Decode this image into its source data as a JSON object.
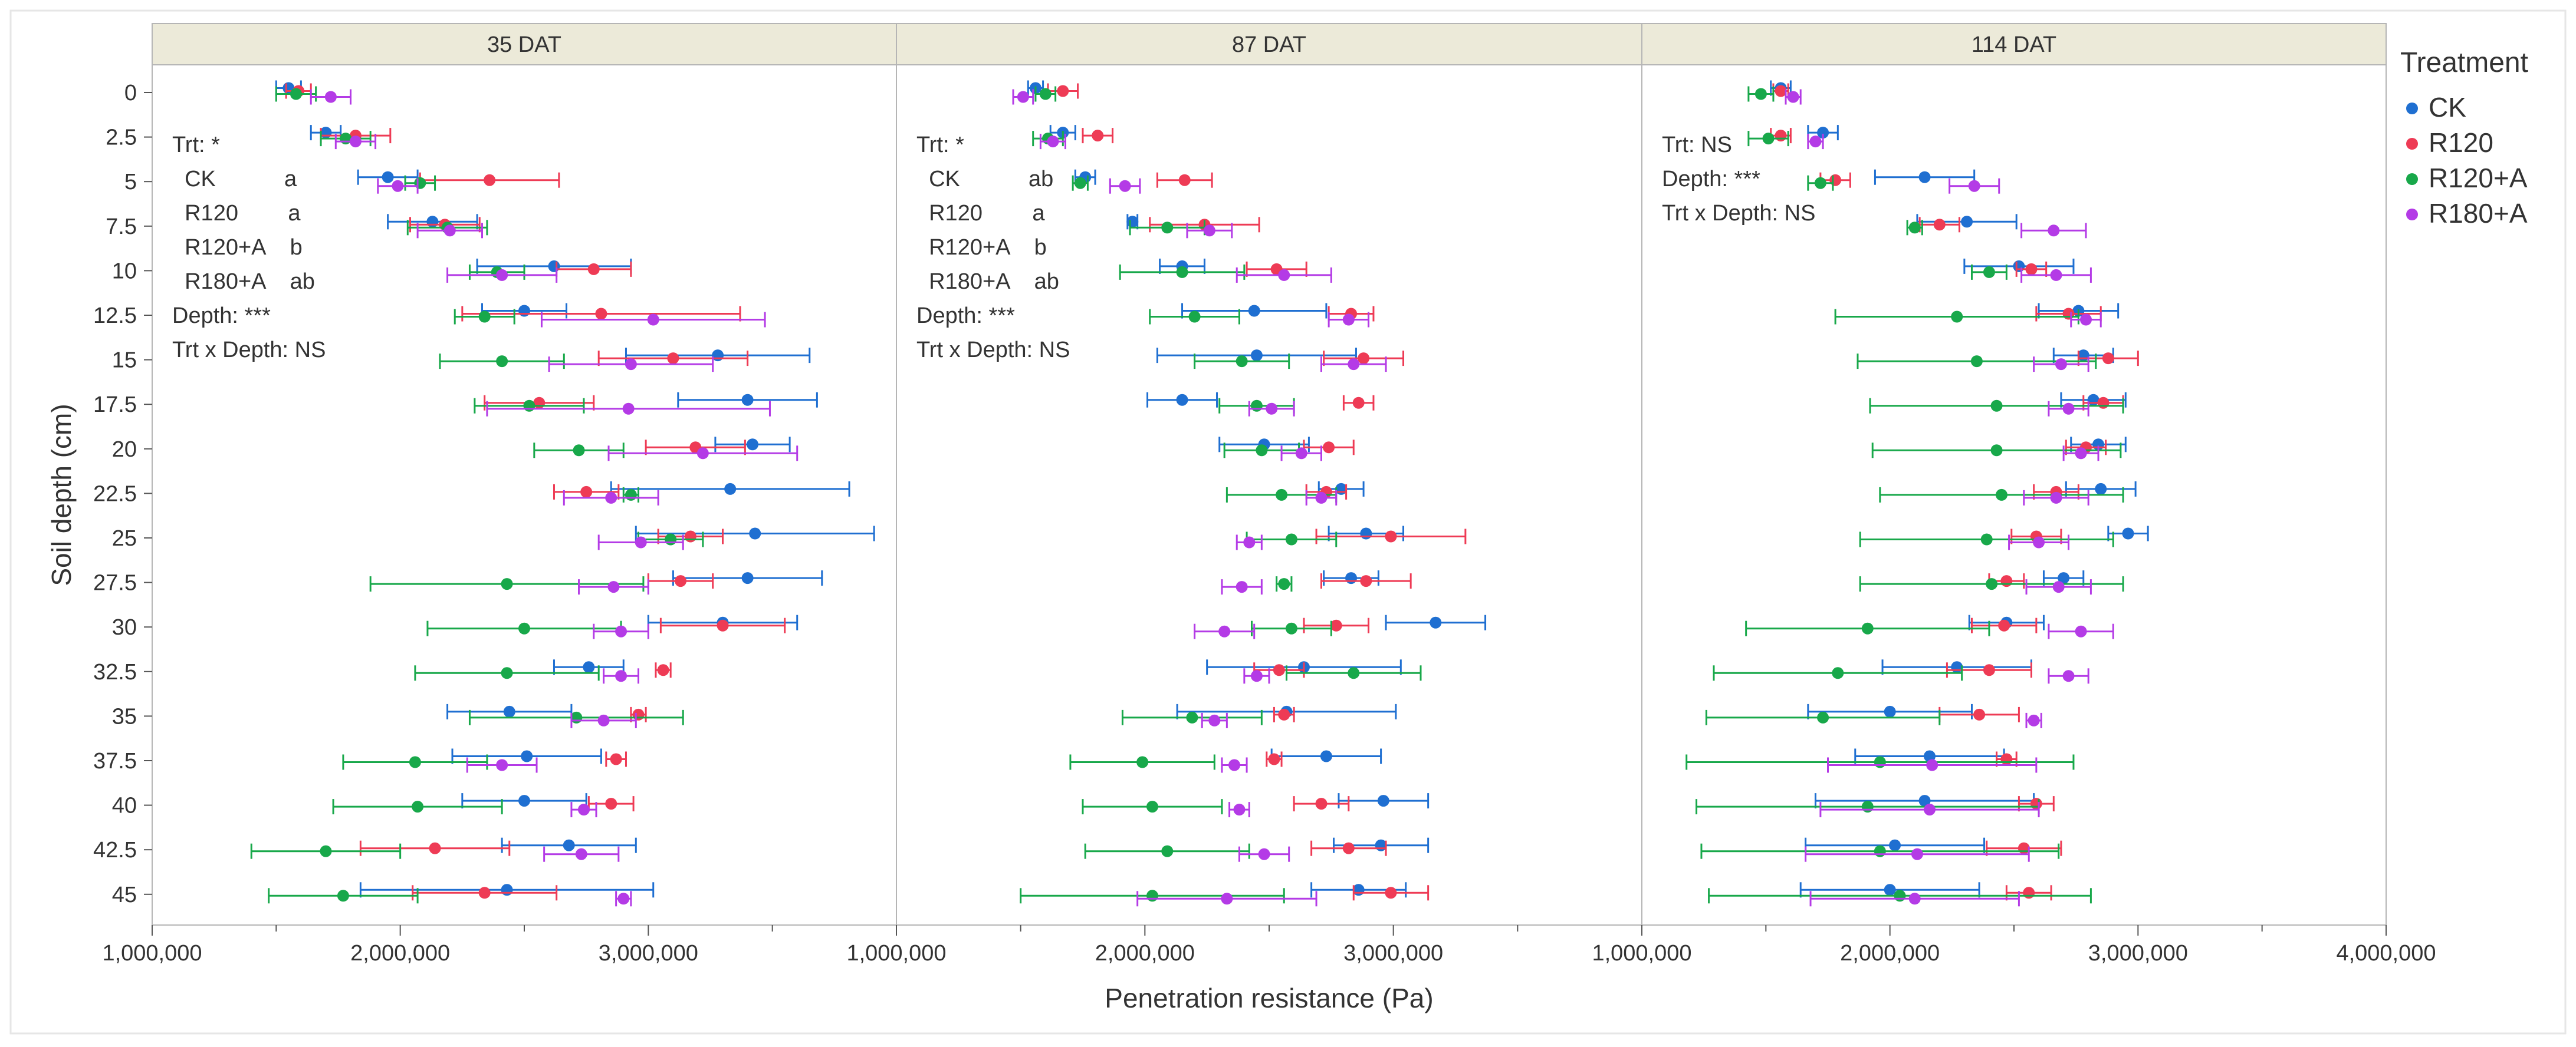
{
  "chart_data": {
    "type": "scatter",
    "x_axis_label": "Penetration resistance (Pa)",
    "y_axis_label": "Soil depth (cm)",
    "depths": [
      0,
      2.5,
      5,
      7.5,
      10,
      12.5,
      15,
      17.5,
      20,
      22.5,
      25,
      27.5,
      30,
      32.5,
      35,
      37.5,
      40,
      42.5,
      45
    ],
    "depth_labels": [
      "0",
      "2.5",
      "5",
      "7.5",
      "10",
      "12.5",
      "15",
      "17.5",
      "20",
      "22.5",
      "25",
      "27.5",
      "30",
      "32.5",
      "35",
      "37.5",
      "40",
      "42.5",
      "45"
    ],
    "x_range": [
      1000000,
      4000000
    ],
    "panel_x_max": [
      4000000,
      4000000,
      4000000
    ],
    "x_ticks": [
      1000000,
      2000000,
      3000000,
      4000000
    ],
    "x_tick_labels": [
      "1,000,000",
      "2,000,000",
      "3,000,000",
      "4,000,000"
    ],
    "legend": {
      "title": "Treatment",
      "entries": [
        {
          "label": "CK",
          "color": "#1f6fd1"
        },
        {
          "label": "R120",
          "color": "#ee3b55"
        },
        {
          "label": "R120+A",
          "color": "#18a84a"
        },
        {
          "label": "R180+A",
          "color": "#b43be6"
        }
      ]
    },
    "panels": [
      {
        "title": "35 DAT",
        "annotations": [
          "Trt: *",
          "  CK           a",
          "  R120        a",
          "  R120+A    b",
          "  R180+A    ab",
          "Depth: ***",
          "Trt x Depth: NS"
        ],
        "series": [
          {
            "name": "CK",
            "x": [
              1550000,
              1700000,
              1950000,
              2130000,
              2620000,
              2500000,
              3280000,
              3400000,
              3420000,
              3330000,
              3430000,
              3400000,
              3300000,
              2760000,
              2440000,
              2510000,
              2500000,
              2680000,
              2430000
            ],
            "xerr": [
              50000,
              60000,
              120000,
              180000,
              310000,
              170000,
              370000,
              280000,
              150000,
              480000,
              480000,
              300000,
              300000,
              140000,
              250000,
              300000,
              250000,
              270000,
              590000
            ]
          },
          {
            "name": "R120",
            "x": [
              1590000,
              1820000,
              2360000,
              2180000,
              2780000,
              2810000,
              3100000,
              2560000,
              3190000,
              2750000,
              3170000,
              3130000,
              3300000,
              3060000,
              2960000,
              2870000,
              2850000,
              2140000,
              2340000
            ],
            "xerr": [
              50000,
              140000,
              280000,
              140000,
              150000,
              560000,
              300000,
              220000,
              200000,
              130000,
              130000,
              130000,
              250000,
              30000,
              30000,
              40000,
              90000,
              300000,
              290000
            ]
          },
          {
            "name": "R120+A",
            "x": [
              1580000,
              1780000,
              2080000,
              2190000,
              2390000,
              2340000,
              2410000,
              2520000,
              2720000,
              2930000,
              3090000,
              2430000,
              2500000,
              2430000,
              2710000,
              2060000,
              2070000,
              1700000,
              1770000
            ],
            "xerr": [
              80000,
              100000,
              60000,
              160000,
              110000,
              120000,
              250000,
              220000,
              180000,
              30000,
              130000,
              550000,
              390000,
              370000,
              430000,
              290000,
              340000,
              300000,
              300000
            ]
          },
          {
            "name": "R180+A",
            "x": [
              1720000,
              1820000,
              1990000,
              2200000,
              2410000,
              3020000,
              2930000,
              2920000,
              3220000,
              2850000,
              2970000,
              2860000,
              2890000,
              2890000,
              2820000,
              2410000,
              2740000,
              2730000,
              2900000
            ],
            "xerr": [
              80000,
              80000,
              80000,
              130000,
              220000,
              450000,
              330000,
              570000,
              380000,
              190000,
              170000,
              140000,
              110000,
              70000,
              130000,
              140000,
              50000,
              150000,
              30000
            ]
          }
        ]
      },
      {
        "title": "87 DAT",
        "annotations": [
          "Trt: *",
          "  CK           ab",
          "  R120        a",
          "  R120+A    b",
          "  R180+A    ab",
          "Depth: ***",
          "Trt x Depth: NS"
        ],
        "series": [
          {
            "name": "CK",
            "x": [
              1560000,
              1670000,
              1760000,
              1950000,
              2150000,
              2440000,
              2450000,
              2150000,
              2480000,
              2790000,
              2890000,
              2830000,
              3170000,
              2640000,
              2570000,
              2730000,
              2960000,
              2950000,
              2860000
            ],
            "xerr": [
              30000,
              50000,
              40000,
              20000,
              90000,
              290000,
              400000,
              140000,
              180000,
              90000,
              150000,
              110000,
              200000,
              390000,
              440000,
              220000,
              180000,
              190000,
              190000
            ]
          },
          {
            "name": "R120",
            "x": [
              1670000,
              1810000,
              2160000,
              2240000,
              2530000,
              2830000,
              2880000,
              2860000,
              2740000,
              2730000,
              2990000,
              2890000,
              2770000,
              2540000,
              2560000,
              2520000,
              2710000,
              2820000,
              2990000
            ],
            "xerr": [
              60000,
              60000,
              110000,
              220000,
              120000,
              90000,
              160000,
              60000,
              100000,
              80000,
              300000,
              180000,
              130000,
              100000,
              40000,
              30000,
              110000,
              150000,
              150000
            ]
          },
          {
            "name": "R120+A",
            "x": [
              1600000,
              1610000,
              1740000,
              2090000,
              2150000,
              2200000,
              2390000,
              2450000,
              2470000,
              2550000,
              2590000,
              2560000,
              2590000,
              2840000,
              2190000,
              1990000,
              2030000,
              2090000,
              2030000
            ],
            "xerr": [
              40000,
              60000,
              30000,
              150000,
              250000,
              180000,
              190000,
              150000,
              150000,
              220000,
              180000,
              30000,
              160000,
              270000,
              280000,
              290000,
              280000,
              330000,
              530000
            ]
          },
          {
            "name": "R180+A",
            "x": [
              1510000,
              1630000,
              1920000,
              2260000,
              2560000,
              2820000,
              2840000,
              2510000,
              2630000,
              2710000,
              2420000,
              2390000,
              2320000,
              2450000,
              2280000,
              2360000,
              2380000,
              2480000,
              2330000
            ],
            "xerr": [
              40000,
              50000,
              60000,
              90000,
              190000,
              80000,
              130000,
              90000,
              80000,
              60000,
              50000,
              80000,
              120000,
              50000,
              50000,
              50000,
              40000,
              100000,
              360000
            ]
          }
        ]
      },
      {
        "title": "114 DAT",
        "annotations": [
          "Trt: NS",
          "Depth: ***",
          "Trt x Depth: NS"
        ],
        "series": [
          {
            "name": "CK",
            "x": [
              1560000,
              1730000,
              2140000,
              2310000,
              2520000,
              2760000,
              2780000,
              2820000,
              2840000,
              2850000,
              2960000,
              2700000,
              2470000,
              2270000,
              2000000,
              2160000,
              2140000,
              2020000,
              2000000
            ],
            "xerr": [
              40000,
              60000,
              200000,
              200000,
              220000,
              160000,
              120000,
              130000,
              110000,
              140000,
              80000,
              80000,
              150000,
              300000,
              330000,
              300000,
              440000,
              360000,
              360000
            ]
          },
          {
            "name": "R120",
            "x": [
              1560000,
              1560000,
              1780000,
              2200000,
              2570000,
              2720000,
              2880000,
              2860000,
              2790000,
              2670000,
              2590000,
              2470000,
              2460000,
              2400000,
              2360000,
              2470000,
              2590000,
              2540000,
              2560000
            ],
            "xerr": [
              30000,
              40000,
              60000,
              80000,
              60000,
              130000,
              120000,
              80000,
              80000,
              90000,
              100000,
              70000,
              130000,
              170000,
              160000,
              40000,
              70000,
              150000,
              90000
            ]
          },
          {
            "name": "R120+A",
            "x": [
              1480000,
              1510000,
              1720000,
              2100000,
              2400000,
              2270000,
              2350000,
              2430000,
              2430000,
              2450000,
              2390000,
              2410000,
              1910000,
              1790000,
              1730000,
              1960000,
              1910000,
              1960000,
              2040000
            ],
            "xerr": [
              50000,
              80000,
              50000,
              30000,
              70000,
              490000,
              480000,
              510000,
              500000,
              490000,
              510000,
              530000,
              490000,
              500000,
              470000,
              780000,
              690000,
              720000,
              770000
            ]
          },
          {
            "name": "R180+A",
            "x": [
              1610000,
              1700000,
              2340000,
              2660000,
              2670000,
              2790000,
              2690000,
              2720000,
              2770000,
              2670000,
              2600000,
              2680000,
              2770000,
              2720000,
              2580000,
              2170000,
              2160000,
              2110000,
              2100000
            ],
            "xerr": [
              30000,
              30000,
              100000,
              130000,
              140000,
              60000,
              110000,
              80000,
              70000,
              130000,
              120000,
              130000,
              130000,
              80000,
              30000,
              420000,
              440000,
              450000,
              420000
            ]
          }
        ]
      }
    ]
  }
}
